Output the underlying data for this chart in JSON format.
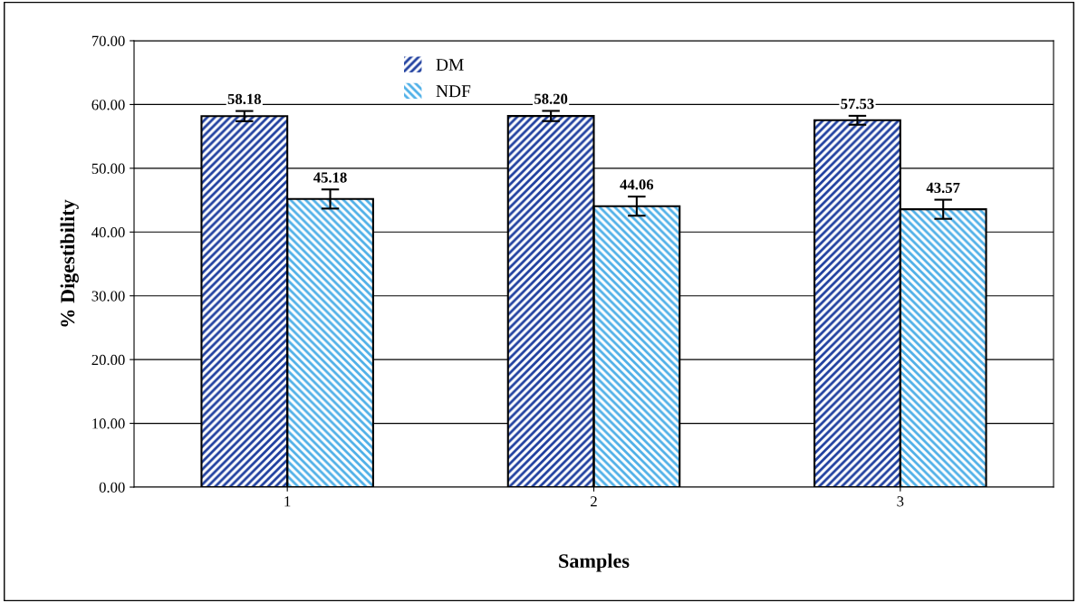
{
  "chart_data": {
    "type": "bar",
    "xlabel": "Samples",
    "ylabel": "% Digestibility",
    "categories": [
      "1",
      "2",
      "3"
    ],
    "series": [
      {
        "name": "DM",
        "color": "#1f3f9f",
        "values": [
          58.18,
          58.2,
          57.53
        ],
        "value_labels": [
          "58.18",
          "58.20",
          "57.53"
        ],
        "errors": [
          0.8,
          0.8,
          0.7
        ]
      },
      {
        "name": "NDF",
        "color": "#4fb0e8",
        "values": [
          45.18,
          44.06,
          43.57
        ],
        "value_labels": [
          "45.18",
          "44.06",
          "43.57"
        ],
        "errors": [
          1.5,
          1.5,
          1.5
        ]
      }
    ],
    "ylim": [
      0,
      70
    ],
    "yticks": [
      {
        "value": 0,
        "label": "0.00"
      },
      {
        "value": 10,
        "label": "10.00"
      },
      {
        "value": 20,
        "label": "20.00"
      },
      {
        "value": 30,
        "label": "30.00"
      },
      {
        "value": 40,
        "label": "40.00"
      },
      {
        "value": 50,
        "label": "50.00"
      },
      {
        "value": 60,
        "label": "60.00"
      },
      {
        "value": 70,
        "label": "70.00"
      }
    ],
    "grid": "y",
    "legend": "top"
  }
}
